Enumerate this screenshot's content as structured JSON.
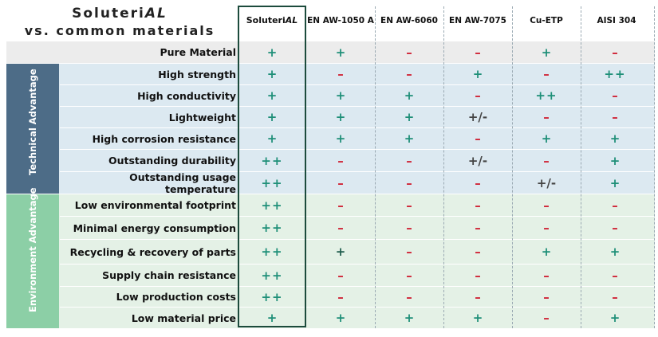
{
  "title": {
    "line1_a": "Soluteri",
    "line1_b": "AL",
    "line2": "vs. common materials"
  },
  "columns": {
    "solute_a": "Soluteri",
    "solute_b": "AL",
    "c1": "EN AW-1050 A",
    "c2": "EN AW-6060",
    "c3": "EN AW-7075",
    "c4": "Cu-ETP",
    "c5": "AISI 304"
  },
  "groups": {
    "technical": "Technical Advantage",
    "environment": "Environment Advantage"
  },
  "rows": [
    {
      "label": "Pure Material",
      "values": [
        "+",
        "+",
        "–",
        "–",
        "+",
        "–"
      ]
    },
    {
      "label": "High strength",
      "values": [
        "+",
        "–",
        "–",
        "+",
        "–",
        "++"
      ]
    },
    {
      "label": "High conductivity",
      "values": [
        "+",
        "+",
        "+",
        "–",
        "++",
        "–"
      ]
    },
    {
      "label": "Lightweight",
      "values": [
        "+",
        "+",
        "+",
        "+/-",
        "–",
        "–"
      ]
    },
    {
      "label": "High corrosion resistance",
      "values": [
        "+",
        "+",
        "+",
        "–",
        "+",
        "+"
      ]
    },
    {
      "label": "Outstanding durability",
      "values": [
        "++",
        "–",
        "–",
        "+/-",
        "–",
        "+"
      ]
    },
    {
      "label": "Outstanding usage temperature",
      "values": [
        "++",
        "–",
        "–",
        "–",
        "+/-",
        "+"
      ]
    },
    {
      "label": "Low environmental footprint",
      "values": [
        "++",
        "–",
        "–",
        "–",
        "–",
        "–"
      ]
    },
    {
      "label": "Minimal energy consumption",
      "values": [
        "++",
        "–",
        "–",
        "–",
        "–",
        "–"
      ]
    },
    {
      "label": "Recycling & recovery of parts",
      "values": [
        "++",
        "+",
        "–",
        "–",
        "+",
        "+"
      ]
    },
    {
      "label": "Supply chain resistance",
      "values": [
        "++",
        "–",
        "–",
        "–",
        "–",
        "–"
      ]
    },
    {
      "label": "Low production costs",
      "values": [
        "++",
        "–",
        "–",
        "–",
        "–",
        "–"
      ]
    },
    {
      "label": "Low material price",
      "values": [
        "+",
        "+",
        "+",
        "+",
        "–",
        "+"
      ]
    }
  ],
  "colors": {
    "technical_band": "#4d6c87",
    "technical_fill": "#dce9f1",
    "environment_band": "#8ccfa6",
    "environment_fill": "#e4f1e6",
    "pure_fill": "#ececec",
    "plus": "#1e8f78",
    "minus": "#d0283a"
  }
}
